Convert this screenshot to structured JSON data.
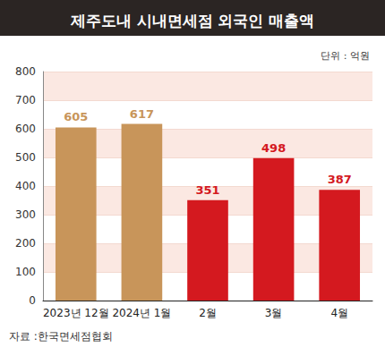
{
  "chart_data": {
    "type": "bar",
    "title": "제주도내 시내면세점 외국인 매출액",
    "subtitle": "단위 : 억원",
    "annotations": [
      "자료 :한국면세점협회"
    ],
    "categories": [
      "2023년 12월",
      "2024년 1월",
      "2월",
      "3월",
      "4월"
    ],
    "values": [
      605,
      617,
      351,
      498,
      387
    ],
    "colors": [
      "#c8955a",
      "#c8955a",
      "#d4191f",
      "#d4191f",
      "#d4191f"
    ],
    "ylim": [
      0,
      800
    ],
    "yticks": [
      0,
      100,
      200,
      300,
      400,
      500,
      600,
      700,
      800
    ],
    "grid": true,
    "data_labels": true
  }
}
